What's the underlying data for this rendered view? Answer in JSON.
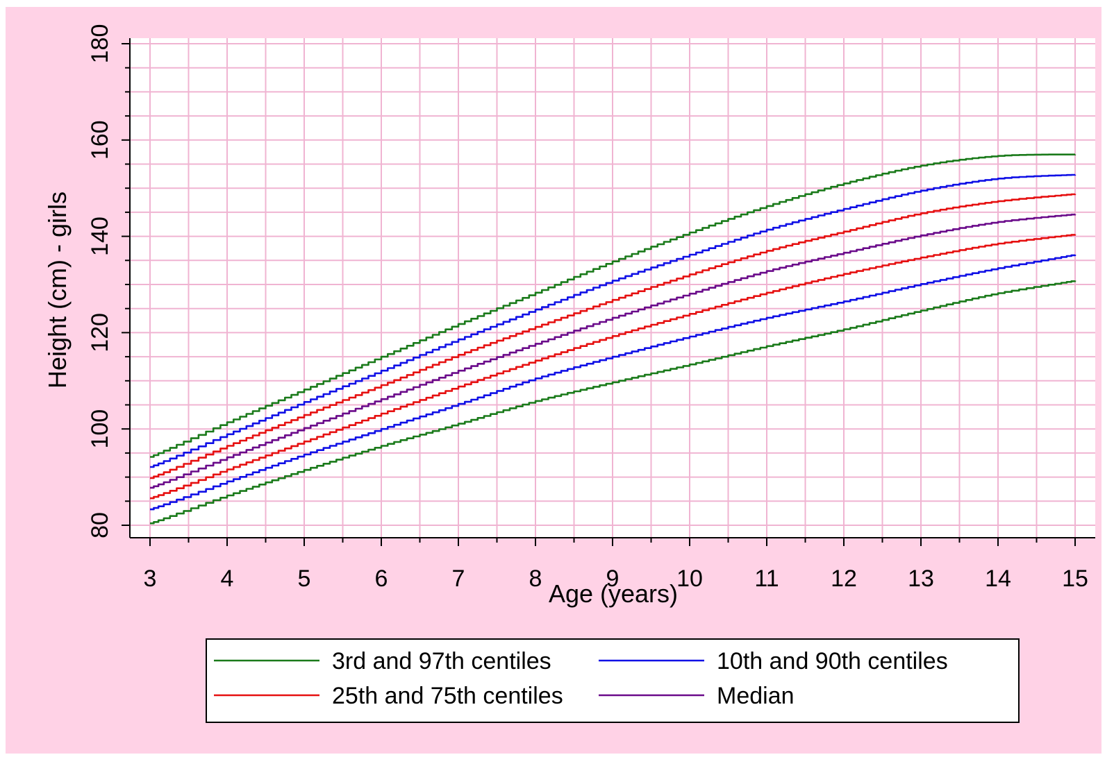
{
  "chart_data": {
    "type": "line",
    "xlabel": "Age (years)",
    "ylabel": "Height (cm) - girls",
    "xlim": [
      3,
      15
    ],
    "ylim": [
      80,
      180
    ],
    "x_ticks": [
      3,
      4,
      5,
      6,
      7,
      8,
      9,
      10,
      11,
      12,
      13,
      14,
      15
    ],
    "y_ticks": [
      80,
      100,
      120,
      140,
      160,
      180
    ],
    "grid": true,
    "legend_position": "bottom",
    "x": [
      3,
      4,
      5,
      6,
      7,
      8,
      9,
      10,
      11,
      12,
      13,
      14,
      15
    ],
    "legend": [
      {
        "label": "3rd and 97th centiles",
        "color": "#1a7a1a"
      },
      {
        "label": "10th and 90th centiles",
        "color": "#1010e6"
      },
      {
        "label": "25th and 75th centiles",
        "color": "#e61010"
      },
      {
        "label": "Median",
        "color": "#6a0a8a"
      }
    ],
    "series": [
      {
        "color": "#1a7a1a",
        "values": [
          94.2,
          101.4,
          108.2,
          115.0,
          121.8,
          128.3,
          134.8,
          140.8,
          146.3,
          151.0,
          154.7,
          156.7,
          157.0
        ]
      },
      {
        "color": "#1010e6",
        "values": [
          92.1,
          98.9,
          105.6,
          112.1,
          118.6,
          124.8,
          130.8,
          136.2,
          141.4,
          145.7,
          149.5,
          152.0,
          152.8
        ]
      },
      {
        "color": "#e61010",
        "values": [
          89.8,
          96.5,
          102.9,
          109.1,
          115.4,
          121.2,
          126.8,
          132.1,
          137.0,
          141.0,
          144.8,
          147.3,
          148.8
        ]
      },
      {
        "color": "#6a0a8a",
        "values": [
          87.8,
          94.1,
          100.2,
          106.2,
          112.1,
          117.7,
          123.1,
          128.1,
          132.8,
          136.6,
          140.2,
          143.0,
          144.6
        ]
      },
      {
        "color": "#e61010",
        "values": [
          85.6,
          91.6,
          97.4,
          103.2,
          108.8,
          114.2,
          119.3,
          123.9,
          128.3,
          132.2,
          135.6,
          138.5,
          140.4
        ]
      },
      {
        "color": "#1010e6",
        "values": [
          83.3,
          89.1,
          94.7,
          100.0,
          105.2,
          110.5,
          115.0,
          119.2,
          123.1,
          126.5,
          130.1,
          133.4,
          136.2
        ]
      },
      {
        "color": "#1a7a1a",
        "values": [
          80.4,
          86.2,
          91.5,
          96.5,
          101.1,
          105.8,
          109.7,
          113.4,
          117.2,
          120.7,
          124.6,
          128.2,
          130.8
        ]
      }
    ]
  }
}
